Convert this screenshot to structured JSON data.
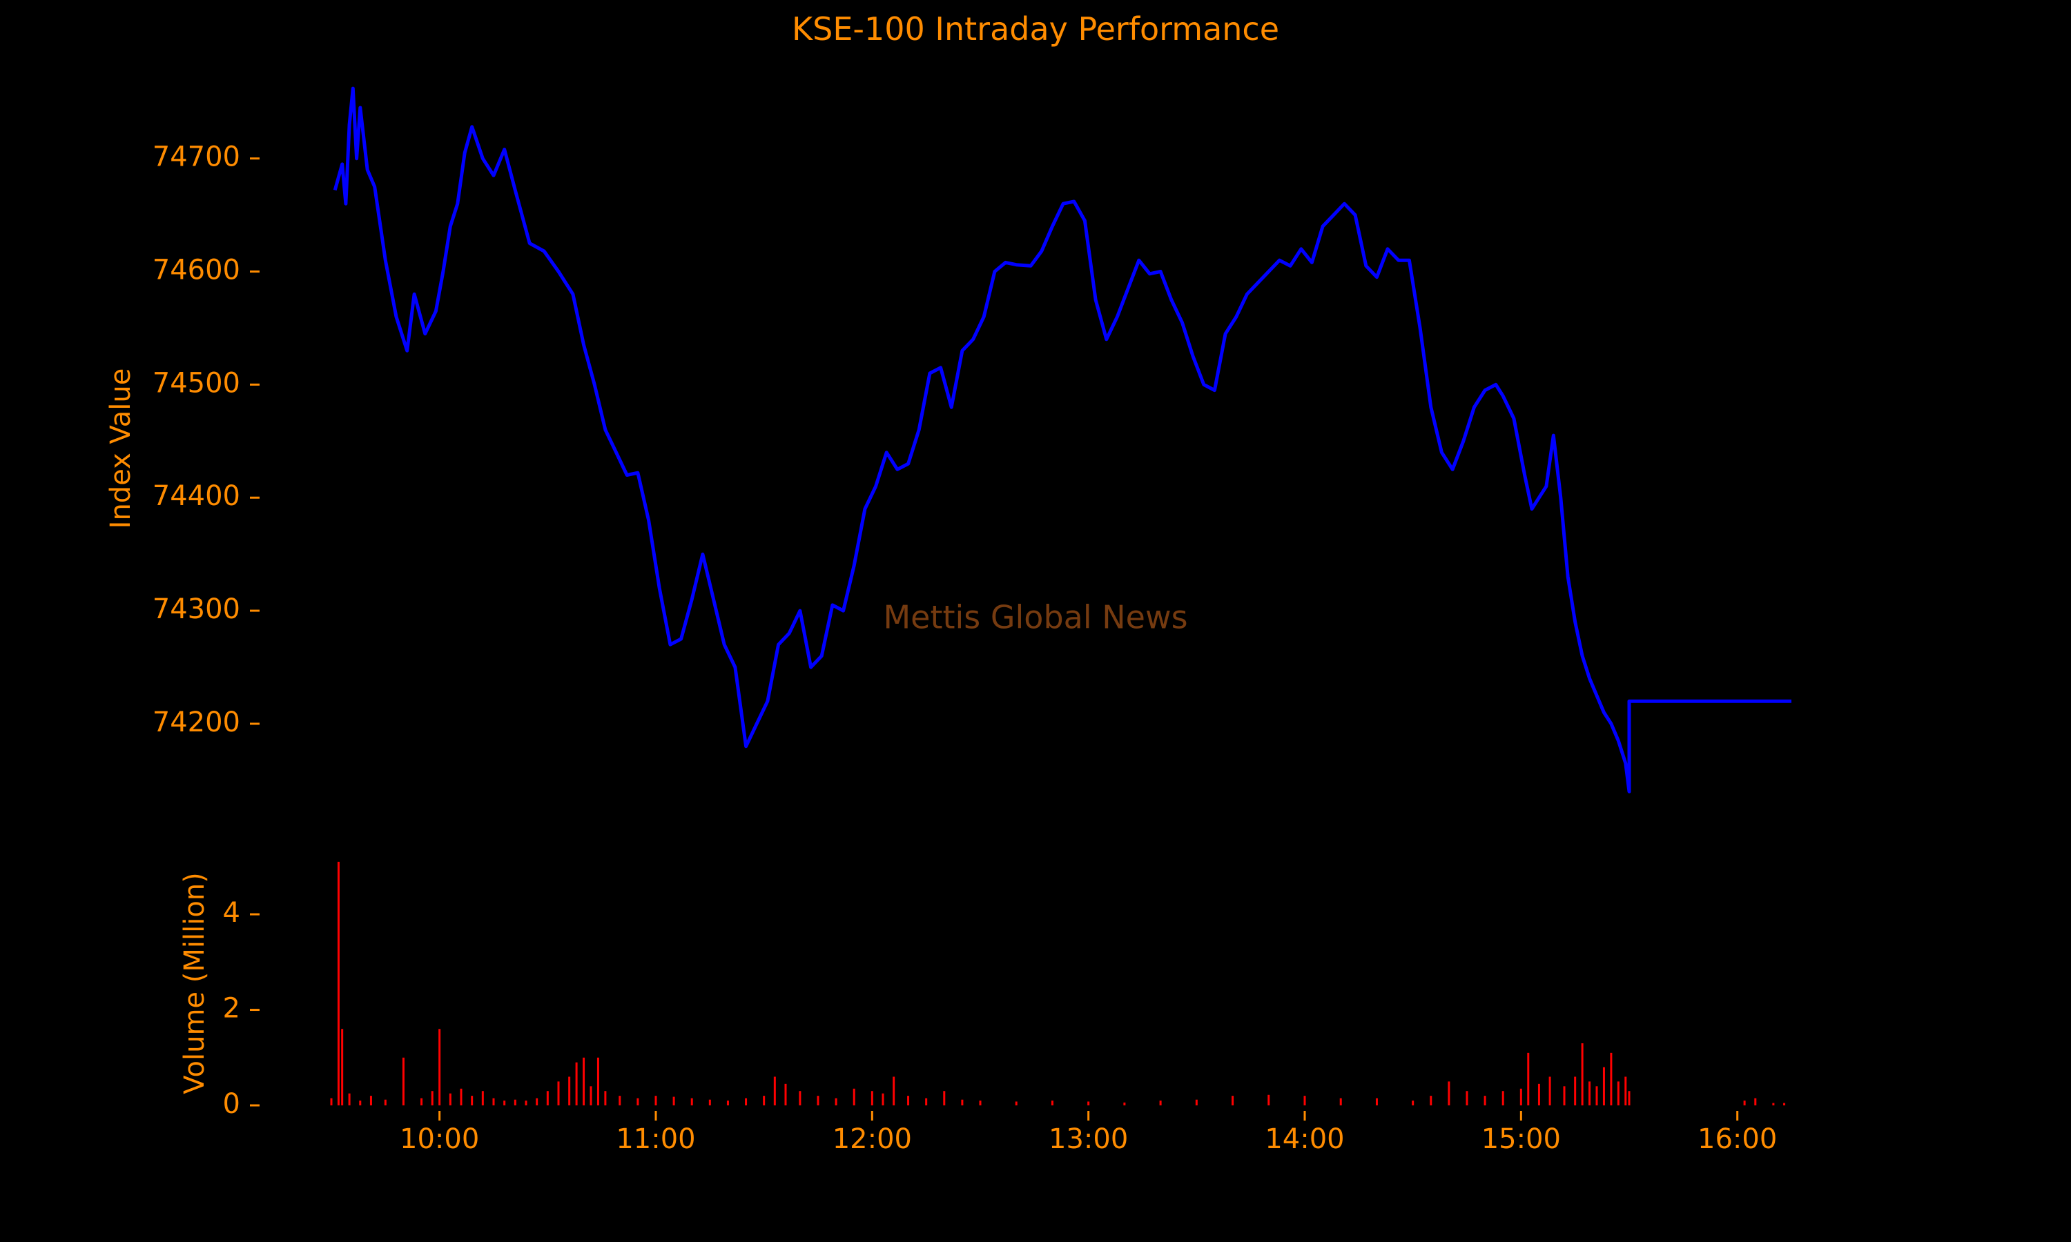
{
  "chart_data": {
    "type": "line",
    "title": "KSE-100 Intraday Performance",
    "watermark": "Mettis Global News",
    "colors": {
      "background": "#000000",
      "text": "#ff8c00",
      "index_line": "#0000ff",
      "volume_bars": "#ff0000",
      "watermark": "#8b4513"
    },
    "x_axis": {
      "unit": "time (HH:MM)",
      "ticks": [
        "10:00",
        "11:00",
        "12:00",
        "13:00",
        "14:00",
        "15:00",
        "16:00"
      ],
      "range": [
        "09:30",
        "16:15"
      ]
    },
    "index_panel": {
      "ylabel": "Index Value",
      "yticks": [
        74200,
        74300,
        74400,
        74500,
        74600,
        74700
      ],
      "ylim": [
        74120,
        74770
      ],
      "series": {
        "points": [
          [
            "09:31",
            74672
          ],
          [
            "09:33",
            74695
          ],
          [
            "09:34",
            74660
          ],
          [
            "09:35",
            74730
          ],
          [
            "09:36",
            74762
          ],
          [
            "09:37",
            74700
          ],
          [
            "09:38",
            74745
          ],
          [
            "09:40",
            74690
          ],
          [
            "09:42",
            74675
          ],
          [
            "09:45",
            74610
          ],
          [
            "09:48",
            74560
          ],
          [
            "09:51",
            74530
          ],
          [
            "09:53",
            74580
          ],
          [
            "09:56",
            74545
          ],
          [
            "09:59",
            74565
          ],
          [
            "10:01",
            74600
          ],
          [
            "10:03",
            74640
          ],
          [
            "10:05",
            74660
          ],
          [
            "10:07",
            74705
          ],
          [
            "10:09",
            74728
          ],
          [
            "10:12",
            74700
          ],
          [
            "10:15",
            74685
          ],
          [
            "10:18",
            74708
          ],
          [
            "10:21",
            74672
          ],
          [
            "10:25",
            74625
          ],
          [
            "10:29",
            74618
          ],
          [
            "10:33",
            74600
          ],
          [
            "10:37",
            74580
          ],
          [
            "10:40",
            74535
          ],
          [
            "10:43",
            74500
          ],
          [
            "10:46",
            74460
          ],
          [
            "10:49",
            74440
          ],
          [
            "10:52",
            74420
          ],
          [
            "10:55",
            74422
          ],
          [
            "10:58",
            74380
          ],
          [
            "11:01",
            74320
          ],
          [
            "11:04",
            74270
          ],
          [
            "11:07",
            74275
          ],
          [
            "11:10",
            74310
          ],
          [
            "11:13",
            74350
          ],
          [
            "11:16",
            74310
          ],
          [
            "11:19",
            74270
          ],
          [
            "11:22",
            74250
          ],
          [
            "11:25",
            74180
          ],
          [
            "11:28",
            74200
          ],
          [
            "11:31",
            74220
          ],
          [
            "11:34",
            74270
          ],
          [
            "11:37",
            74280
          ],
          [
            "11:40",
            74300
          ],
          [
            "11:43",
            74250
          ],
          [
            "11:46",
            74260
          ],
          [
            "11:49",
            74305
          ],
          [
            "11:52",
            74300
          ],
          [
            "11:55",
            74340
          ],
          [
            "11:58",
            74390
          ],
          [
            "12:01",
            74410
          ],
          [
            "12:04",
            74440
          ],
          [
            "12:07",
            74425
          ],
          [
            "12:10",
            74430
          ],
          [
            "12:13",
            74460
          ],
          [
            "12:16",
            74510
          ],
          [
            "12:19",
            74515
          ],
          [
            "12:22",
            74480
          ],
          [
            "12:25",
            74530
          ],
          [
            "12:28",
            74540
          ],
          [
            "12:31",
            74560
          ],
          [
            "12:34",
            74600
          ],
          [
            "12:37",
            74608
          ],
          [
            "12:40",
            74606
          ],
          [
            "12:44",
            74605
          ],
          [
            "12:47",
            74618
          ],
          [
            "12:50",
            74640
          ],
          [
            "12:53",
            74660
          ],
          [
            "12:56",
            74662
          ],
          [
            "12:59",
            74645
          ],
          [
            "13:02",
            74575
          ],
          [
            "13:05",
            74540
          ],
          [
            "13:08",
            74560
          ],
          [
            "13:11",
            74585
          ],
          [
            "13:14",
            74610
          ],
          [
            "13:17",
            74598
          ],
          [
            "13:20",
            74600
          ],
          [
            "13:23",
            74575
          ],
          [
            "13:26",
            74555
          ],
          [
            "13:29",
            74525
          ],
          [
            "13:32",
            74500
          ],
          [
            "13:35",
            74495
          ],
          [
            "13:38",
            74545
          ],
          [
            "13:41",
            74560
          ],
          [
            "13:44",
            74580
          ],
          [
            "13:47",
            74590
          ],
          [
            "13:50",
            74600
          ],
          [
            "13:53",
            74610
          ],
          [
            "13:56",
            74605
          ],
          [
            "13:59",
            74620
          ],
          [
            "14:02",
            74608
          ],
          [
            "14:05",
            74640
          ],
          [
            "14:08",
            74650
          ],
          [
            "14:11",
            74660
          ],
          [
            "14:14",
            74650
          ],
          [
            "14:17",
            74605
          ],
          [
            "14:20",
            74595
          ],
          [
            "14:23",
            74620
          ],
          [
            "14:26",
            74610
          ],
          [
            "14:29",
            74610
          ],
          [
            "14:32",
            74550
          ],
          [
            "14:35",
            74480
          ],
          [
            "14:38",
            74440
          ],
          [
            "14:41",
            74425
          ],
          [
            "14:44",
            74450
          ],
          [
            "14:47",
            74480
          ],
          [
            "14:50",
            74495
          ],
          [
            "14:53",
            74500
          ],
          [
            "14:55",
            74490
          ],
          [
            "14:58",
            74470
          ],
          [
            "15:01",
            74420
          ],
          [
            "15:03",
            74390
          ],
          [
            "15:05",
            74400
          ],
          [
            "15:07",
            74410
          ],
          [
            "15:09",
            74455
          ],
          [
            "15:11",
            74400
          ],
          [
            "15:13",
            74330
          ],
          [
            "15:15",
            74290
          ],
          [
            "15:17",
            74260
          ],
          [
            "15:19",
            74240
          ],
          [
            "15:21",
            74225
          ],
          [
            "15:23",
            74210
          ],
          [
            "15:25",
            74200
          ],
          [
            "15:27",
            74185
          ],
          [
            "15:29",
            74165
          ],
          [
            "15:30",
            74140
          ],
          [
            "15:30",
            74220
          ],
          [
            "16:15",
            74220
          ]
        ]
      }
    },
    "volume_panel": {
      "ylabel": "Volume (Million)",
      "yticks": [
        0,
        2,
        4
      ],
      "ylim": [
        0,
        5.2
      ],
      "bars": [
        [
          "09:30",
          0.15
        ],
        [
          "09:32",
          5.1
        ],
        [
          "09:33",
          1.6
        ],
        [
          "09:35",
          0.25
        ],
        [
          "09:38",
          0.1
        ],
        [
          "09:41",
          0.2
        ],
        [
          "09:45",
          0.12
        ],
        [
          "09:50",
          1.0
        ],
        [
          "09:55",
          0.15
        ],
        [
          "09:58",
          0.3
        ],
        [
          "10:00",
          1.6
        ],
        [
          "10:03",
          0.25
        ],
        [
          "10:06",
          0.35
        ],
        [
          "10:09",
          0.2
        ],
        [
          "10:12",
          0.3
        ],
        [
          "10:15",
          0.15
        ],
        [
          "10:18",
          0.1
        ],
        [
          "10:21",
          0.12
        ],
        [
          "10:24",
          0.1
        ],
        [
          "10:27",
          0.15
        ],
        [
          "10:30",
          0.3
        ],
        [
          "10:33",
          0.5
        ],
        [
          "10:36",
          0.6
        ],
        [
          "10:38",
          0.9
        ],
        [
          "10:40",
          1.0
        ],
        [
          "10:42",
          0.4
        ],
        [
          "10:44",
          1.0
        ],
        [
          "10:46",
          0.3
        ],
        [
          "10:50",
          0.2
        ],
        [
          "10:55",
          0.15
        ],
        [
          "11:00",
          0.2
        ],
        [
          "11:05",
          0.18
        ],
        [
          "11:10",
          0.15
        ],
        [
          "11:15",
          0.12
        ],
        [
          "11:20",
          0.1
        ],
        [
          "11:25",
          0.15
        ],
        [
          "11:30",
          0.2
        ],
        [
          "11:33",
          0.6
        ],
        [
          "11:36",
          0.45
        ],
        [
          "11:40",
          0.3
        ],
        [
          "11:45",
          0.2
        ],
        [
          "11:50",
          0.15
        ],
        [
          "11:55",
          0.35
        ],
        [
          "12:00",
          0.3
        ],
        [
          "12:03",
          0.25
        ],
        [
          "12:06",
          0.6
        ],
        [
          "12:10",
          0.2
        ],
        [
          "12:15",
          0.15
        ],
        [
          "12:20",
          0.3
        ],
        [
          "12:25",
          0.12
        ],
        [
          "12:30",
          0.1
        ],
        [
          "12:40",
          0.08
        ],
        [
          "12:50",
          0.1
        ],
        [
          "13:00",
          0.08
        ],
        [
          "13:10",
          0.06
        ],
        [
          "13:20",
          0.1
        ],
        [
          "13:30",
          0.12
        ],
        [
          "13:40",
          0.2
        ],
        [
          "13:50",
          0.22
        ],
        [
          "14:00",
          0.2
        ],
        [
          "14:10",
          0.15
        ],
        [
          "14:20",
          0.15
        ],
        [
          "14:30",
          0.1
        ],
        [
          "14:35",
          0.2
        ],
        [
          "14:40",
          0.5
        ],
        [
          "14:45",
          0.3
        ],
        [
          "14:50",
          0.2
        ],
        [
          "14:55",
          0.3
        ],
        [
          "15:00",
          0.35
        ],
        [
          "15:02",
          1.1
        ],
        [
          "15:05",
          0.45
        ],
        [
          "15:08",
          0.6
        ],
        [
          "15:12",
          0.4
        ],
        [
          "15:15",
          0.6
        ],
        [
          "15:17",
          1.3
        ],
        [
          "15:19",
          0.5
        ],
        [
          "15:21",
          0.4
        ],
        [
          "15:23",
          0.8
        ],
        [
          "15:25",
          1.1
        ],
        [
          "15:27",
          0.5
        ],
        [
          "15:29",
          0.6
        ],
        [
          "15:30",
          0.3
        ],
        [
          "16:02",
          0.1
        ],
        [
          "16:05",
          0.15
        ],
        [
          "16:10",
          0.05
        ],
        [
          "16:13",
          0.05
        ]
      ]
    }
  }
}
